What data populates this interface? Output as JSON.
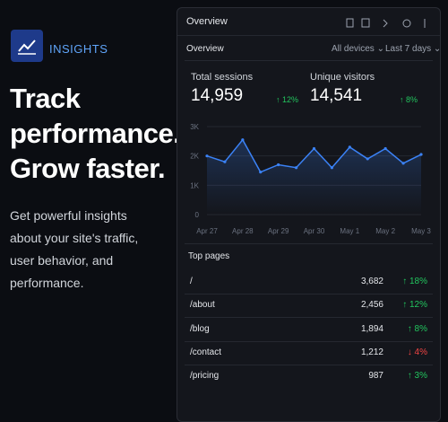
{
  "brand": {
    "label": "INSIGHTS"
  },
  "hero": {
    "headline_lines": [
      "Track",
      "performance.",
      "Grow faster."
    ],
    "body_lines": [
      "Get powerful insights",
      "about your site's traffic,",
      "user behavior, and",
      "performance."
    ]
  },
  "panel": {
    "title": "Overview",
    "section": "Overview",
    "filters": [
      "All devices",
      "Last 7 days"
    ],
    "stats": [
      {
        "label": "Total sessions",
        "value": "14,959",
        "change": "↑ 12%"
      },
      {
        "label": "Unique visitors",
        "value": "14,541",
        "change": "↑ 8%"
      }
    ],
    "chart": {
      "type": "line",
      "categories": [
        "Apr 27",
        null,
        "Apr 28",
        null,
        "Apr 29",
        null,
        "Apr 30",
        null,
        "May 1",
        null,
        "May 2",
        null,
        "May 3"
      ],
      "values": [
        2000,
        1800,
        2550,
        1450,
        1700,
        1600,
        2250,
        1600,
        2300,
        1900,
        2250,
        1750,
        2050
      ],
      "color": "#3b82f6",
      "ylim": [
        0,
        3000
      ],
      "yticks": [
        0,
        {
          "value": 1000,
          "label": "1K"
        },
        {
          "value": 2000,
          "label": "2K"
        },
        {
          "value": 3000,
          "label": "3K"
        }
      ],
      "grid": true
    },
    "top_pages": {
      "title": "Top pages",
      "rows": [
        [
          "/",
          "3,682",
          "↑ 18%"
        ],
        [
          "/about",
          "2,456",
          "↑ 12%"
        ],
        [
          "/blog",
          "1,894",
          "↑ 8%"
        ],
        [
          "/contact",
          "1,212",
          "↓ 4%"
        ],
        [
          "/pricing",
          "987",
          "↑ 3%"
        ]
      ]
    }
  }
}
